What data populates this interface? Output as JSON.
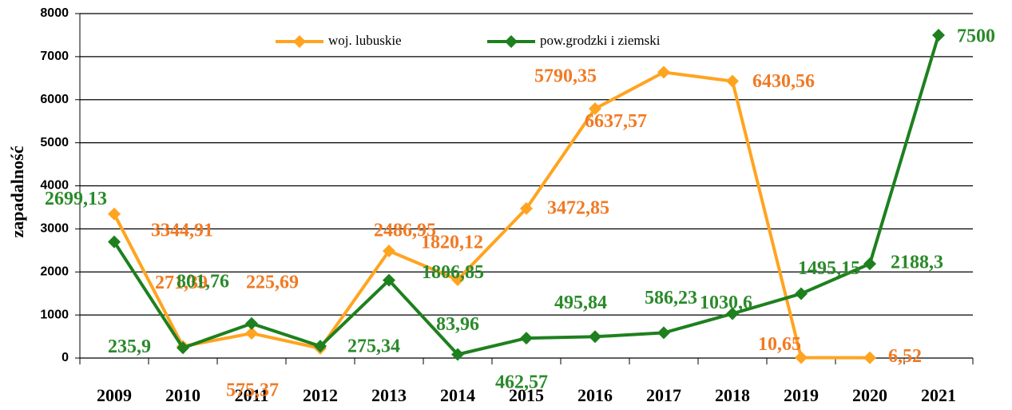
{
  "chart_data": {
    "type": "line",
    "y_label": "zapadalność",
    "categories": [
      "2009",
      "2010",
      "2011",
      "2012",
      "2013",
      "2014",
      "2015",
      "2016",
      "2017",
      "2018",
      "2019",
      "2020",
      "2021"
    ],
    "series": [
      {
        "name": "woj. lubuskie",
        "color": "#ffa420",
        "label_color": "#f07a24",
        "values": [
          3344.91,
          271.39,
          575.37,
          225.69,
          2486.95,
          1820.12,
          3472.85,
          5790.35,
          6637.57,
          6430.56,
          10.65,
          6.52,
          null
        ],
        "value_labels": [
          "3344,91",
          "271,39",
          "575,37",
          "225,69",
          "2486,95",
          "1820,12",
          "3472,85",
          "5790,35",
          "6637,57",
          "6430,56",
          "10,65",
          "6,52",
          null
        ]
      },
      {
        "name": "pow.grodzki i ziemski",
        "color": "#1e801e",
        "label_color": "#2a8a2a",
        "values": [
          2699.13,
          235.9,
          801.76,
          275.34,
          1806.85,
          83.96,
          462.57,
          495.84,
          586.23,
          1030.6,
          1495.15,
          2188.3,
          7500
        ],
        "value_labels": [
          "2699,13",
          "235,9",
          "801,76",
          "275,34",
          "1806,85",
          "83,96",
          "462,57",
          "495,84",
          "586,23",
          "1030,6",
          "1495,15",
          "2188,3",
          "7500"
        ]
      }
    ],
    "ylim": [
      0,
      8000
    ],
    "yticks": [
      0,
      1000,
      2000,
      3000,
      4000,
      5000,
      6000,
      7000,
      8000
    ],
    "grid": true,
    "legend": "top"
  }
}
